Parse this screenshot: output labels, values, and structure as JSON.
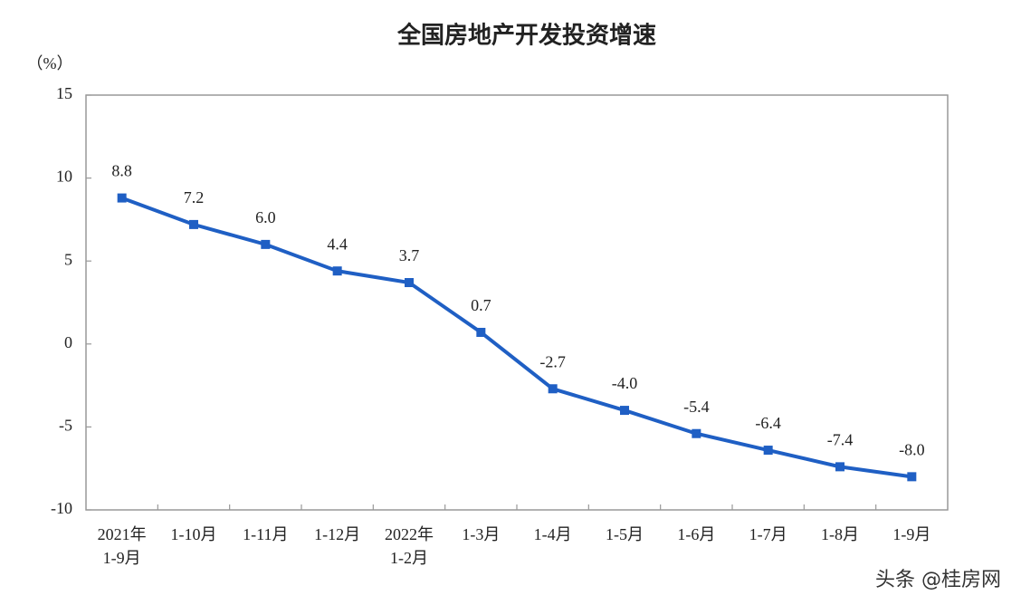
{
  "chart_data": {
    "type": "line",
    "title": "全国房地产开发投资增速",
    "y_unit": "（%）",
    "categories": [
      "2021年\n1-9月",
      "1-10月",
      "1-11月",
      "1-12月",
      "2022年\n1-2月",
      "1-3月",
      "1-4月",
      "1-5月",
      "1-6月",
      "1-7月",
      "1-8月",
      "1-9月"
    ],
    "series": [
      {
        "name": "全国房地产开发投资增速",
        "color": "#1f5fc4",
        "values": [
          8.8,
          7.2,
          6.0,
          4.4,
          3.7,
          0.7,
          -2.7,
          -4.0,
          -5.4,
          -6.4,
          -7.4,
          -8.0
        ],
        "value_labels": [
          "8.8",
          "7.2",
          "6.0",
          "4.4",
          "3.7",
          "0.7",
          "-2.7",
          "-4.0",
          "-5.4",
          "-6.4",
          "-7.4",
          "-8.0"
        ]
      }
    ],
    "ylim": [
      -10,
      15
    ],
    "yticks": [
      -10,
      -5,
      0,
      5,
      10,
      15
    ],
    "grid": false,
    "watermark": "头条 @桂房网"
  }
}
